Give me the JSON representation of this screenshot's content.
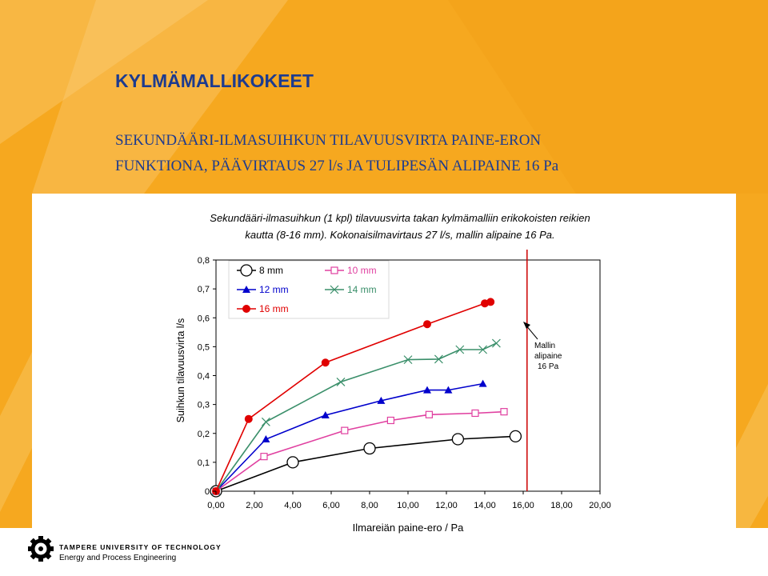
{
  "slide": {
    "title": "KYLMÄMALLIKOKEET",
    "subtitle_line1": "SEKUNDÄÄRI-ILMASUIHKUN TILAVUUSVIRTA PAINE-ERON",
    "subtitle_line2": "FUNKTIONA, PÄÄVIRTAUS 27 l/s JA TULIPESÄN ALIPAINE 16 Pa"
  },
  "caption": {
    "line1": "Sekundääri-ilmasuihkun (1 kpl) tilavuusvirta takan kylmämalliin erikokoisten reikien",
    "line2": "kautta (8-16 mm). Kokonaisilmavirtaus 27 l/s, mallin alipaine 16 Pa."
  },
  "footer": {
    "university": "TAMPERE UNIVERSITY OF TECHNOLOGY",
    "department": "Energy and Process Engineering"
  },
  "colors": {
    "orange": "#f6a81f",
    "orange_light": "#f8c257",
    "title_blue": "#1d3b8f"
  },
  "chart_data": {
    "type": "scatter",
    "title": "",
    "xlabel": "Ilmareiän paine-ero / Pa",
    "ylabel": "Suihkun tilavuusvirta l/s",
    "xlim": [
      0,
      20
    ],
    "ylim": [
      0,
      0.8
    ],
    "x_ticks": [
      "0,00",
      "2,00",
      "4,00",
      "6,00",
      "8,00",
      "10,00",
      "12,00",
      "14,00",
      "16,00",
      "18,00",
      "20,00"
    ],
    "y_ticks": [
      "0",
      "0,1",
      "0,2",
      "0,3",
      "0,4",
      "0,5",
      "0,6",
      "0,7",
      "0,8"
    ],
    "grid": false,
    "legend": "top-left",
    "series": [
      {
        "name": "8 mm",
        "color": "#000000",
        "marker": "circle-open",
        "x": [
          0,
          4.0,
          8.0,
          12.6,
          15.6
        ],
        "y": [
          0,
          0.1,
          0.148,
          0.18,
          0.19
        ]
      },
      {
        "name": "10 mm",
        "color": "#e040a0",
        "marker": "square-open",
        "x": [
          0,
          2.5,
          6.7,
          9.1,
          11.1,
          13.5,
          15.0
        ],
        "y": [
          0,
          0.12,
          0.21,
          0.245,
          0.265,
          0.27,
          0.275
        ]
      },
      {
        "name": "12 mm",
        "color": "#0000cc",
        "marker": "triangle",
        "x": [
          0,
          2.6,
          5.7,
          8.6,
          11.0,
          12.1,
          13.9
        ],
        "y": [
          0,
          0.18,
          0.263,
          0.313,
          0.35,
          0.35,
          0.372
        ]
      },
      {
        "name": "14 mm",
        "color": "#3a8f6a",
        "marker": "x",
        "x": [
          0,
          2.6,
          6.5,
          10.0,
          11.6,
          12.7,
          13.9,
          14.6
        ],
        "y": [
          0,
          0.24,
          0.378,
          0.455,
          0.457,
          0.49,
          0.49,
          0.512
        ]
      },
      {
        "name": "16 mm",
        "color": "#e00000",
        "marker": "circle-filled",
        "x": [
          0,
          1.7,
          5.7,
          11.0,
          14.0,
          14.3
        ],
        "y": [
          0,
          0.25,
          0.445,
          0.578,
          0.65,
          0.655
        ]
      }
    ],
    "reference_line": {
      "x": 16.2,
      "color": "#cc0000"
    },
    "annotation": {
      "lines": [
        "Mallin",
        "alipaine",
        "16 Pa"
      ]
    }
  }
}
